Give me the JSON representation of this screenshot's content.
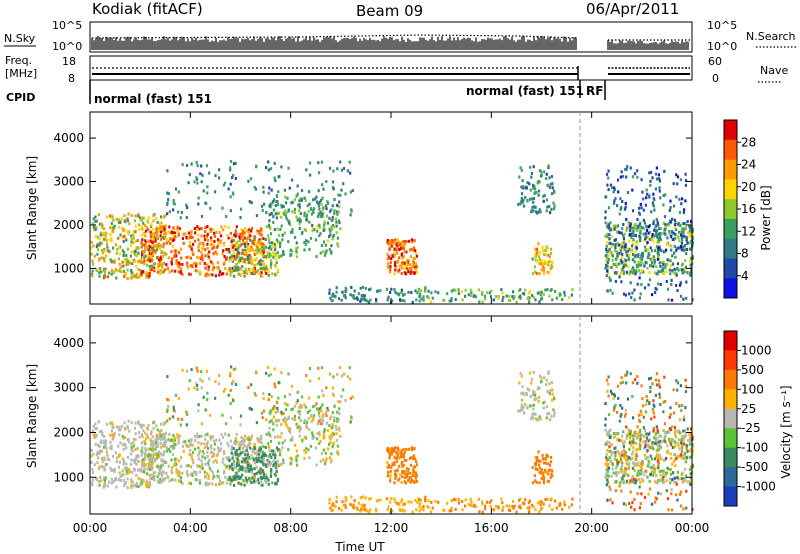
{
  "header": {
    "station": "Kodiak (fitACF)",
    "beam": "Beam 09",
    "date": "06/Apr/2011"
  },
  "top_panels": {
    "nsky_label": "N.Sky",
    "nsky_ticks": [
      "10^5",
      "10^0"
    ],
    "nsearch_label": "N.Search",
    "nsearch_ticks": [
      "10^5",
      "10^0"
    ],
    "freq_label_1": "Freq.",
    "freq_label_2": "[MHz]",
    "freq_ticks": [
      "18",
      "8"
    ],
    "nave_label": "Nave",
    "nave_ticks": [
      "60",
      "0"
    ],
    "cpid_label": "CPID",
    "cpid_segments": [
      {
        "label": "normal (fast) 151"
      },
      {
        "label": "normal (fast) 151"
      },
      {
        "label": "RF"
      }
    ]
  },
  "chart_data": [
    {
      "type": "heatmap",
      "name": "power",
      "xlabel": "Time UT",
      "ylabel": "Slant Range [km]",
      "xlim": [
        0,
        24
      ],
      "ylim": [
        180,
        4600
      ],
      "yticks": [
        1000,
        2000,
        3000,
        4000
      ],
      "colorbar": {
        "label": "Power [dB]",
        "ticks": [
          4,
          8,
          12,
          16,
          20,
          24,
          28
        ],
        "range": [
          0,
          32
        ],
        "colors": [
          "#1010e0",
          "#1f4aa8",
          "#2f7a86",
          "#3aa060",
          "#8fca2c",
          "#ffd400",
          "#ff9a00",
          "#ff5a00",
          "#e00000"
        ]
      }
    },
    {
      "type": "heatmap",
      "name": "velocity",
      "xlabel": "Time UT",
      "ylabel": "Slant Range [km]",
      "xlim": [
        0,
        24
      ],
      "ylim": [
        180,
        4600
      ],
      "yticks": [
        1000,
        2000,
        3000,
        4000
      ],
      "xticks": [
        "00:00",
        "04:00",
        "08:00",
        "12:00",
        "16:00",
        "20:00",
        "00:00"
      ],
      "colorbar": {
        "label": "Velocity [m s⁻¹]",
        "ticks": [
          1000,
          500,
          100,
          25,
          -25,
          -100,
          -500,
          -1000
        ],
        "colors": [
          "#1a3fb8",
          "#2b6a9a",
          "#3c8a60",
          "#5cc23a",
          "#b8b8b0",
          "#ffb000",
          "#ff7a00",
          "#ff3a00",
          "#e00000"
        ]
      }
    }
  ]
}
